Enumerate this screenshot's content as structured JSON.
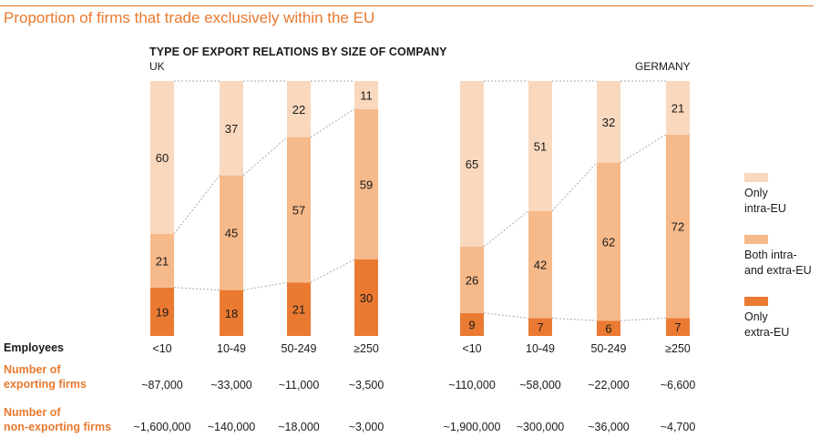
{
  "title": "Proportion of firms that trade exclusively within the EU",
  "subtitle": "TYPE OF EXPORT RELATIONS BY SIZE OF COMPANY",
  "colors": {
    "only_intra": "#f9d8bd",
    "both": "#f6b98a",
    "only_extra": "#ea7a32",
    "accent": "#e8792f",
    "connector": "#aaaaaa"
  },
  "legend": [
    {
      "key": "only_intra",
      "label_line1": "Only",
      "label_line2": "intra-EU"
    },
    {
      "key": "both",
      "label_line1": "Both intra-",
      "label_line2": "and extra-EU"
    },
    {
      "key": "only_extra",
      "label_line1": "Only",
      "label_line2": "extra-EU"
    }
  ],
  "row_labels": {
    "employees": "Employees",
    "exporting_line1": "Number of",
    "exporting_line2": "exporting firms",
    "nonexporting_line1": "Number of",
    "nonexporting_line2": "non-exporting firms"
  },
  "chart_data": [
    {
      "type": "bar",
      "stacked": true,
      "title": "UK",
      "categories": [
        "<10",
        "10-49",
        "50-249",
        "≥250"
      ],
      "series": [
        {
          "name": "Only extra-EU",
          "key": "only_extra",
          "values": [
            19,
            18,
            21,
            30
          ]
        },
        {
          "name": "Both intra- and extra-EU",
          "key": "both",
          "values": [
            21,
            45,
            57,
            59
          ]
        },
        {
          "name": "Only intra-EU",
          "key": "only_intra",
          "values": [
            60,
            37,
            22,
            11
          ]
        }
      ],
      "ylim": [
        0,
        100
      ],
      "exporting_firms": [
        "~87,000",
        "~33,000",
        "~11,000",
        "~3,500"
      ],
      "non_exporting_firms": [
        "~1,600,000",
        "~140,000",
        "~18,000",
        "~3,000"
      ]
    },
    {
      "type": "bar",
      "stacked": true,
      "title": "GERMANY",
      "categories": [
        "<10",
        "10-49",
        "50-249",
        "≥250"
      ],
      "series": [
        {
          "name": "Only extra-EU",
          "key": "only_extra",
          "values": [
            9,
            7,
            6,
            7
          ]
        },
        {
          "name": "Both intra- and extra-EU",
          "key": "both",
          "values": [
            26,
            42,
            62,
            72
          ]
        },
        {
          "name": "Only intra-EU",
          "key": "only_intra",
          "values": [
            65,
            51,
            32,
            21
          ]
        }
      ],
      "ylim": [
        0,
        100
      ],
      "exporting_firms": [
        "~110,000",
        "~58,000",
        "~22,000",
        "~6,600"
      ],
      "non_exporting_firms": [
        "~1,900,000",
        "~300,000",
        "~36,000",
        "~4,700"
      ]
    }
  ]
}
